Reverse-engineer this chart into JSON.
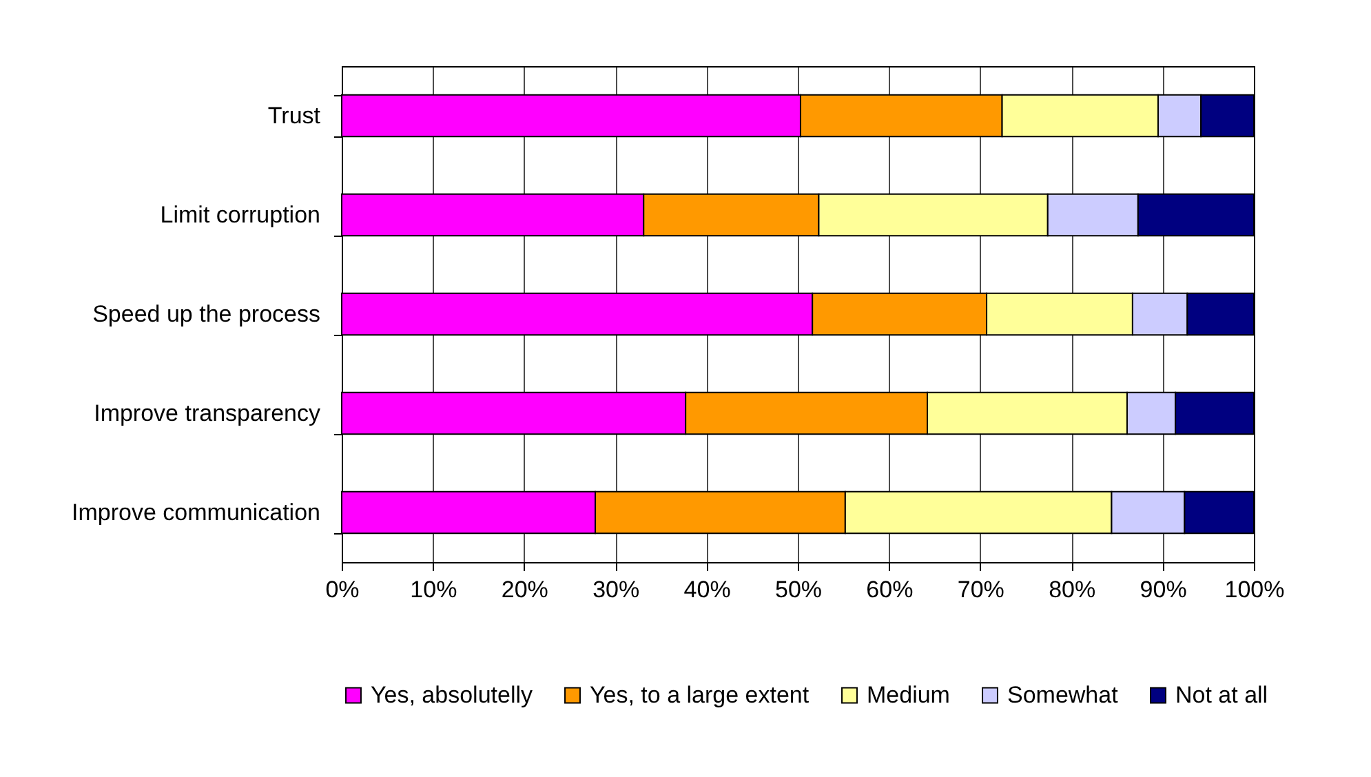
{
  "chart_data": {
    "type": "bar",
    "orientation": "horizontal",
    "stacked": true,
    "categories": [
      "Trust",
      "Limit corruption",
      "Speed up the process",
      "Improve transparency",
      "Improve communication"
    ],
    "series": [
      {
        "name": "Yes, absolutelly",
        "color": "#ff00ff",
        "values": [
          50.3,
          33.1,
          51.6,
          37.7,
          27.8
        ]
      },
      {
        "name": "Yes, to a large extent",
        "color": "#ff9900",
        "values": [
          22.1,
          19.2,
          19.1,
          26.5,
          27.4
        ]
      },
      {
        "name": "Medium",
        "color": "#ffff99",
        "values": [
          17.1,
          25.1,
          16.0,
          21.9,
          29.2
        ]
      },
      {
        "name": "Somewhat",
        "color": "#ccccff",
        "values": [
          4.7,
          9.9,
          6.0,
          5.3,
          8.0
        ]
      },
      {
        "name": "Not at all",
        "color": "#000080",
        "values": [
          5.8,
          12.7,
          7.3,
          8.6,
          7.6
        ]
      }
    ],
    "xlim": [
      0,
      100
    ],
    "xticks": [
      {
        "value": 0,
        "label": "0%"
      },
      {
        "value": 10,
        "label": "10%"
      },
      {
        "value": 20,
        "label": "20%"
      },
      {
        "value": 30,
        "label": "30%"
      },
      {
        "value": 40,
        "label": "40%"
      },
      {
        "value": 50,
        "label": "50%"
      },
      {
        "value": 60,
        "label": "60%"
      },
      {
        "value": 70,
        "label": "70%"
      },
      {
        "value": 80,
        "label": "80%"
      },
      {
        "value": 90,
        "label": "90%"
      },
      {
        "value": 100,
        "label": "100%"
      }
    ],
    "grid": "x",
    "legend": "bottom"
  }
}
